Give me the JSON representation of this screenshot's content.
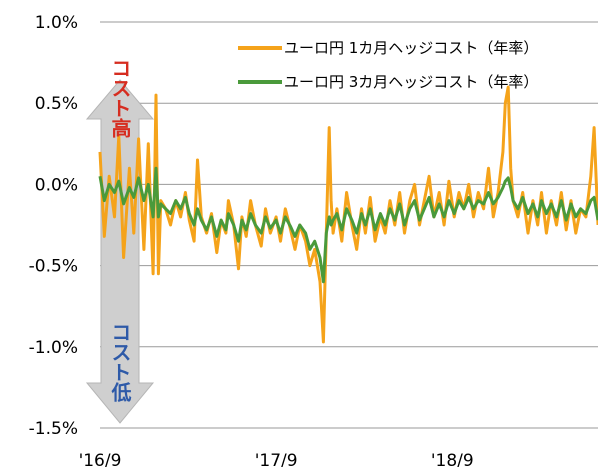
{
  "chart_data": {
    "type": "line",
    "title": "",
    "xlabel": "",
    "ylabel": "",
    "ylim": [
      -1.5,
      1.0
    ],
    "yticks": [
      1.0,
      0.5,
      0.0,
      -0.5,
      -1.0,
      -1.5
    ],
    "ytick_labels": [
      "1.0%",
      "0.5%",
      "0.0%",
      "-0.5%",
      "-1.0%",
      "-1.5%"
    ],
    "xlim": [
      "2016-09-01",
      "2019-06-30"
    ],
    "xticks": [
      "2016-09-01",
      "2017-09-01",
      "2018-09-01"
    ],
    "xtick_labels": [
      "'16/9",
      "'17/9",
      "'18/9"
    ],
    "grid": true,
    "legend_position": "top-right",
    "annotations": {
      "high": "コスト高",
      "high_color": "#d62d20",
      "low": "コスト低",
      "low_color": "#2e5aa8"
    },
    "series": [
      {
        "name": "ユーロ円 1カ月ヘッジコスト（年率）",
        "color": "#f5a31a",
        "points": [
          [
            "2016-09-01",
            0.2
          ],
          [
            "2016-09-10",
            -0.32
          ],
          [
            "2016-09-20",
            0.05
          ],
          [
            "2016-10-01",
            -0.2
          ],
          [
            "2016-10-10",
            0.3
          ],
          [
            "2016-10-20",
            -0.45
          ],
          [
            "2016-11-01",
            0.1
          ],
          [
            "2016-11-10",
            -0.3
          ],
          [
            "2016-11-20",
            0.28
          ],
          [
            "2016-12-01",
            -0.4
          ],
          [
            "2016-12-10",
            0.25
          ],
          [
            "2016-12-20",
            -0.55
          ],
          [
            "2016-12-26",
            0.55
          ],
          [
            "2016-12-31",
            -0.55
          ],
          [
            "2017-01-05",
            -0.1
          ],
          [
            "2017-01-15",
            -0.15
          ],
          [
            "2017-01-25",
            -0.25
          ],
          [
            "2017-02-05",
            -0.1
          ],
          [
            "2017-02-15",
            -0.2
          ],
          [
            "2017-02-25",
            -0.05
          ],
          [
            "2017-03-05",
            -0.22
          ],
          [
            "2017-03-15",
            -0.35
          ],
          [
            "2017-03-22",
            0.15
          ],
          [
            "2017-03-30",
            -0.2
          ],
          [
            "2017-04-10",
            -0.3
          ],
          [
            "2017-04-20",
            -0.18
          ],
          [
            "2017-05-01",
            -0.42
          ],
          [
            "2017-05-10",
            -0.22
          ],
          [
            "2017-05-20",
            -0.3
          ],
          [
            "2017-05-25",
            -0.1
          ],
          [
            "2017-06-05",
            -0.25
          ],
          [
            "2017-06-15",
            -0.52
          ],
          [
            "2017-06-22",
            -0.2
          ],
          [
            "2017-07-01",
            -0.32
          ],
          [
            "2017-07-10",
            -0.1
          ],
          [
            "2017-07-20",
            -0.25
          ],
          [
            "2017-08-01",
            -0.38
          ],
          [
            "2017-08-10",
            -0.15
          ],
          [
            "2017-08-20",
            -0.3
          ],
          [
            "2017-09-01",
            -0.2
          ],
          [
            "2017-09-10",
            -0.35
          ],
          [
            "2017-09-20",
            -0.15
          ],
          [
            "2017-10-01",
            -0.28
          ],
          [
            "2017-10-10",
            -0.4
          ],
          [
            "2017-10-20",
            -0.25
          ],
          [
            "2017-11-01",
            -0.35
          ],
          [
            "2017-11-10",
            -0.5
          ],
          [
            "2017-11-20",
            -0.4
          ],
          [
            "2017-12-01",
            -0.6
          ],
          [
            "2017-12-08",
            -0.97
          ],
          [
            "2017-12-14",
            -0.3
          ],
          [
            "2017-12-20",
            0.35
          ],
          [
            "2017-12-24",
            -0.1
          ],
          [
            "2017-12-28",
            -0.3
          ],
          [
            "2018-01-05",
            -0.15
          ],
          [
            "2018-01-15",
            -0.35
          ],
          [
            "2018-01-25",
            -0.05
          ],
          [
            "2018-02-05",
            -0.25
          ],
          [
            "2018-02-15",
            -0.4
          ],
          [
            "2018-02-25",
            -0.15
          ],
          [
            "2018-03-05",
            -0.3
          ],
          [
            "2018-03-15",
            -0.08
          ],
          [
            "2018-03-25",
            -0.35
          ],
          [
            "2018-04-05",
            -0.2
          ],
          [
            "2018-04-15",
            -0.3
          ],
          [
            "2018-04-25",
            -0.1
          ],
          [
            "2018-05-05",
            -0.25
          ],
          [
            "2018-05-15",
            -0.05
          ],
          [
            "2018-05-25",
            -0.3
          ],
          [
            "2018-06-05",
            -0.1
          ],
          [
            "2018-06-15",
            0.0
          ],
          [
            "2018-06-25",
            -0.25
          ],
          [
            "2018-07-05",
            -0.1
          ],
          [
            "2018-07-15",
            0.05
          ],
          [
            "2018-07-25",
            -0.2
          ],
          [
            "2018-08-05",
            -0.05
          ],
          [
            "2018-08-15",
            -0.25
          ],
          [
            "2018-08-25",
            0.02
          ],
          [
            "2018-09-05",
            -0.2
          ],
          [
            "2018-09-15",
            -0.05
          ],
          [
            "2018-09-25",
            -0.15
          ],
          [
            "2018-10-05",
            0.0
          ],
          [
            "2018-10-15",
            -0.2
          ],
          [
            "2018-10-25",
            -0.05
          ],
          [
            "2018-11-05",
            -0.15
          ],
          [
            "2018-11-15",
            0.1
          ],
          [
            "2018-11-25",
            -0.2
          ],
          [
            "2018-12-05",
            -0.05
          ],
          [
            "2018-12-15",
            0.2
          ],
          [
            "2018-12-20",
            0.5
          ],
          [
            "2018-12-26",
            0.6
          ],
          [
            "2018-12-31",
            0.1
          ],
          [
            "2019-01-05",
            -0.1
          ],
          [
            "2019-01-15",
            -0.2
          ],
          [
            "2019-01-25",
            -0.05
          ],
          [
            "2019-02-05",
            -0.3
          ],
          [
            "2019-02-15",
            -0.1
          ],
          [
            "2019-02-25",
            -0.25
          ],
          [
            "2019-03-05",
            -0.05
          ],
          [
            "2019-03-15",
            -0.3
          ],
          [
            "2019-03-25",
            -0.1
          ],
          [
            "2019-04-05",
            -0.25
          ],
          [
            "2019-04-15",
            -0.05
          ],
          [
            "2019-04-25",
            -0.28
          ],
          [
            "2019-05-05",
            -0.1
          ],
          [
            "2019-05-15",
            -0.3
          ],
          [
            "2019-05-25",
            -0.15
          ],
          [
            "2019-06-05",
            -0.2
          ],
          [
            "2019-06-15",
            0.05
          ],
          [
            "2019-06-22",
            0.35
          ],
          [
            "2019-06-30",
            -0.25
          ]
        ]
      },
      {
        "name": "ユーロ円 3カ月ヘッジコスト（年率）",
        "color": "#4a9a3b",
        "points": [
          [
            "2016-09-01",
            0.05
          ],
          [
            "2016-09-10",
            -0.1
          ],
          [
            "2016-09-20",
            0.0
          ],
          [
            "2016-10-01",
            -0.05
          ],
          [
            "2016-10-10",
            0.02
          ],
          [
            "2016-10-20",
            -0.12
          ],
          [
            "2016-11-01",
            -0.02
          ],
          [
            "2016-11-10",
            -0.08
          ],
          [
            "2016-11-20",
            0.04
          ],
          [
            "2016-12-01",
            -0.1
          ],
          [
            "2016-12-10",
            0.0
          ],
          [
            "2016-12-20",
            -0.2
          ],
          [
            "2016-12-26",
            0.1
          ],
          [
            "2016-12-31",
            -0.2
          ],
          [
            "2017-01-05",
            -0.12
          ],
          [
            "2017-01-15",
            -0.15
          ],
          [
            "2017-01-25",
            -0.18
          ],
          [
            "2017-02-05",
            -0.1
          ],
          [
            "2017-02-15",
            -0.15
          ],
          [
            "2017-02-25",
            -0.08
          ],
          [
            "2017-03-05",
            -0.18
          ],
          [
            "2017-03-15",
            -0.25
          ],
          [
            "2017-03-22",
            -0.15
          ],
          [
            "2017-03-30",
            -0.22
          ],
          [
            "2017-04-10",
            -0.28
          ],
          [
            "2017-04-20",
            -0.2
          ],
          [
            "2017-05-01",
            -0.32
          ],
          [
            "2017-05-10",
            -0.22
          ],
          [
            "2017-05-20",
            -0.28
          ],
          [
            "2017-05-25",
            -0.18
          ],
          [
            "2017-06-05",
            -0.25
          ],
          [
            "2017-06-15",
            -0.35
          ],
          [
            "2017-06-22",
            -0.22
          ],
          [
            "2017-07-01",
            -0.28
          ],
          [
            "2017-07-10",
            -0.18
          ],
          [
            "2017-07-20",
            -0.25
          ],
          [
            "2017-08-01",
            -0.3
          ],
          [
            "2017-08-10",
            -0.2
          ],
          [
            "2017-08-20",
            -0.27
          ],
          [
            "2017-09-01",
            -0.22
          ],
          [
            "2017-09-10",
            -0.3
          ],
          [
            "2017-09-20",
            -0.2
          ],
          [
            "2017-10-01",
            -0.26
          ],
          [
            "2017-10-10",
            -0.32
          ],
          [
            "2017-10-20",
            -0.25
          ],
          [
            "2017-11-01",
            -0.3
          ],
          [
            "2017-11-10",
            -0.4
          ],
          [
            "2017-11-20",
            -0.35
          ],
          [
            "2017-12-01",
            -0.45
          ],
          [
            "2017-12-08",
            -0.6
          ],
          [
            "2017-12-14",
            -0.3
          ],
          [
            "2017-12-20",
            -0.2
          ],
          [
            "2017-12-24",
            -0.25
          ],
          [
            "2017-12-28",
            -0.22
          ],
          [
            "2018-01-05",
            -0.18
          ],
          [
            "2018-01-15",
            -0.28
          ],
          [
            "2018-01-25",
            -0.15
          ],
          [
            "2018-02-05",
            -0.22
          ],
          [
            "2018-02-15",
            -0.3
          ],
          [
            "2018-02-25",
            -0.18
          ],
          [
            "2018-03-05",
            -0.25
          ],
          [
            "2018-03-15",
            -0.15
          ],
          [
            "2018-03-25",
            -0.28
          ],
          [
            "2018-04-05",
            -0.18
          ],
          [
            "2018-04-15",
            -0.25
          ],
          [
            "2018-04-25",
            -0.15
          ],
          [
            "2018-05-05",
            -0.22
          ],
          [
            "2018-05-15",
            -0.12
          ],
          [
            "2018-05-25",
            -0.25
          ],
          [
            "2018-06-05",
            -0.15
          ],
          [
            "2018-06-15",
            -0.1
          ],
          [
            "2018-06-25",
            -0.22
          ],
          [
            "2018-07-05",
            -0.15
          ],
          [
            "2018-07-15",
            -0.08
          ],
          [
            "2018-07-25",
            -0.2
          ],
          [
            "2018-08-05",
            -0.12
          ],
          [
            "2018-08-15",
            -0.2
          ],
          [
            "2018-08-25",
            -0.1
          ],
          [
            "2018-09-05",
            -0.18
          ],
          [
            "2018-09-15",
            -0.1
          ],
          [
            "2018-09-25",
            -0.15
          ],
          [
            "2018-10-05",
            -0.08
          ],
          [
            "2018-10-15",
            -0.15
          ],
          [
            "2018-10-25",
            -0.1
          ],
          [
            "2018-11-05",
            -0.12
          ],
          [
            "2018-11-15",
            -0.05
          ],
          [
            "2018-11-25",
            -0.12
          ],
          [
            "2018-12-05",
            -0.08
          ],
          [
            "2018-12-15",
            -0.02
          ],
          [
            "2018-12-20",
            0.02
          ],
          [
            "2018-12-26",
            0.04
          ],
          [
            "2018-12-31",
            -0.02
          ],
          [
            "2019-01-05",
            -0.1
          ],
          [
            "2019-01-15",
            -0.15
          ],
          [
            "2019-01-25",
            -0.08
          ],
          [
            "2019-02-05",
            -0.18
          ],
          [
            "2019-02-15",
            -0.12
          ],
          [
            "2019-02-25",
            -0.2
          ],
          [
            "2019-03-05",
            -0.1
          ],
          [
            "2019-03-15",
            -0.18
          ],
          [
            "2019-03-25",
            -0.12
          ],
          [
            "2019-04-05",
            -0.2
          ],
          [
            "2019-04-15",
            -0.1
          ],
          [
            "2019-04-25",
            -0.22
          ],
          [
            "2019-05-05",
            -0.12
          ],
          [
            "2019-05-15",
            -0.2
          ],
          [
            "2019-05-25",
            -0.15
          ],
          [
            "2019-06-05",
            -0.18
          ],
          [
            "2019-06-15",
            -0.1
          ],
          [
            "2019-06-22",
            -0.08
          ],
          [
            "2019-06-30",
            -0.22
          ]
        ]
      }
    ]
  }
}
